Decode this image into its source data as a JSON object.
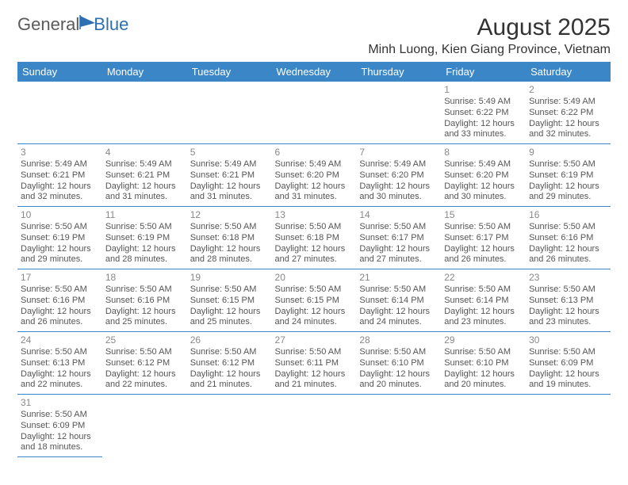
{
  "logo": {
    "text1": "General",
    "text2": "Blue"
  },
  "title": "August 2025",
  "location": "Minh Luong, Kien Giang Province, Vietnam",
  "colors": {
    "header_bg": "#3b86c6",
    "header_fg": "#ffffff",
    "rule": "#3b86c6",
    "text": "#555555",
    "daynum": "#888888"
  },
  "weekdays": [
    "Sunday",
    "Monday",
    "Tuesday",
    "Wednesday",
    "Thursday",
    "Friday",
    "Saturday"
  ],
  "first_day_index": 5,
  "days": [
    {
      "n": 1,
      "sr": "5:49 AM",
      "ss": "6:22 PM",
      "dl": "12 hours and 33 minutes."
    },
    {
      "n": 2,
      "sr": "5:49 AM",
      "ss": "6:22 PM",
      "dl": "12 hours and 32 minutes."
    },
    {
      "n": 3,
      "sr": "5:49 AM",
      "ss": "6:21 PM",
      "dl": "12 hours and 32 minutes."
    },
    {
      "n": 4,
      "sr": "5:49 AM",
      "ss": "6:21 PM",
      "dl": "12 hours and 31 minutes."
    },
    {
      "n": 5,
      "sr": "5:49 AM",
      "ss": "6:21 PM",
      "dl": "12 hours and 31 minutes."
    },
    {
      "n": 6,
      "sr": "5:49 AM",
      "ss": "6:20 PM",
      "dl": "12 hours and 31 minutes."
    },
    {
      "n": 7,
      "sr": "5:49 AM",
      "ss": "6:20 PM",
      "dl": "12 hours and 30 minutes."
    },
    {
      "n": 8,
      "sr": "5:49 AM",
      "ss": "6:20 PM",
      "dl": "12 hours and 30 minutes."
    },
    {
      "n": 9,
      "sr": "5:50 AM",
      "ss": "6:19 PM",
      "dl": "12 hours and 29 minutes."
    },
    {
      "n": 10,
      "sr": "5:50 AM",
      "ss": "6:19 PM",
      "dl": "12 hours and 29 minutes."
    },
    {
      "n": 11,
      "sr": "5:50 AM",
      "ss": "6:19 PM",
      "dl": "12 hours and 28 minutes."
    },
    {
      "n": 12,
      "sr": "5:50 AM",
      "ss": "6:18 PM",
      "dl": "12 hours and 28 minutes."
    },
    {
      "n": 13,
      "sr": "5:50 AM",
      "ss": "6:18 PM",
      "dl": "12 hours and 27 minutes."
    },
    {
      "n": 14,
      "sr": "5:50 AM",
      "ss": "6:17 PM",
      "dl": "12 hours and 27 minutes."
    },
    {
      "n": 15,
      "sr": "5:50 AM",
      "ss": "6:17 PM",
      "dl": "12 hours and 26 minutes."
    },
    {
      "n": 16,
      "sr": "5:50 AM",
      "ss": "6:16 PM",
      "dl": "12 hours and 26 minutes."
    },
    {
      "n": 17,
      "sr": "5:50 AM",
      "ss": "6:16 PM",
      "dl": "12 hours and 26 minutes."
    },
    {
      "n": 18,
      "sr": "5:50 AM",
      "ss": "6:16 PM",
      "dl": "12 hours and 25 minutes."
    },
    {
      "n": 19,
      "sr": "5:50 AM",
      "ss": "6:15 PM",
      "dl": "12 hours and 25 minutes."
    },
    {
      "n": 20,
      "sr": "5:50 AM",
      "ss": "6:15 PM",
      "dl": "12 hours and 24 minutes."
    },
    {
      "n": 21,
      "sr": "5:50 AM",
      "ss": "6:14 PM",
      "dl": "12 hours and 24 minutes."
    },
    {
      "n": 22,
      "sr": "5:50 AM",
      "ss": "6:14 PM",
      "dl": "12 hours and 23 minutes."
    },
    {
      "n": 23,
      "sr": "5:50 AM",
      "ss": "6:13 PM",
      "dl": "12 hours and 23 minutes."
    },
    {
      "n": 24,
      "sr": "5:50 AM",
      "ss": "6:13 PM",
      "dl": "12 hours and 22 minutes."
    },
    {
      "n": 25,
      "sr": "5:50 AM",
      "ss": "6:12 PM",
      "dl": "12 hours and 22 minutes."
    },
    {
      "n": 26,
      "sr": "5:50 AM",
      "ss": "6:12 PM",
      "dl": "12 hours and 21 minutes."
    },
    {
      "n": 27,
      "sr": "5:50 AM",
      "ss": "6:11 PM",
      "dl": "12 hours and 21 minutes."
    },
    {
      "n": 28,
      "sr": "5:50 AM",
      "ss": "6:10 PM",
      "dl": "12 hours and 20 minutes."
    },
    {
      "n": 29,
      "sr": "5:50 AM",
      "ss": "6:10 PM",
      "dl": "12 hours and 20 minutes."
    },
    {
      "n": 30,
      "sr": "5:50 AM",
      "ss": "6:09 PM",
      "dl": "12 hours and 19 minutes."
    },
    {
      "n": 31,
      "sr": "5:50 AM",
      "ss": "6:09 PM",
      "dl": "12 hours and 18 minutes."
    }
  ],
  "labels": {
    "sunrise": "Sunrise:",
    "sunset": "Sunset:",
    "daylight": "Daylight:"
  }
}
